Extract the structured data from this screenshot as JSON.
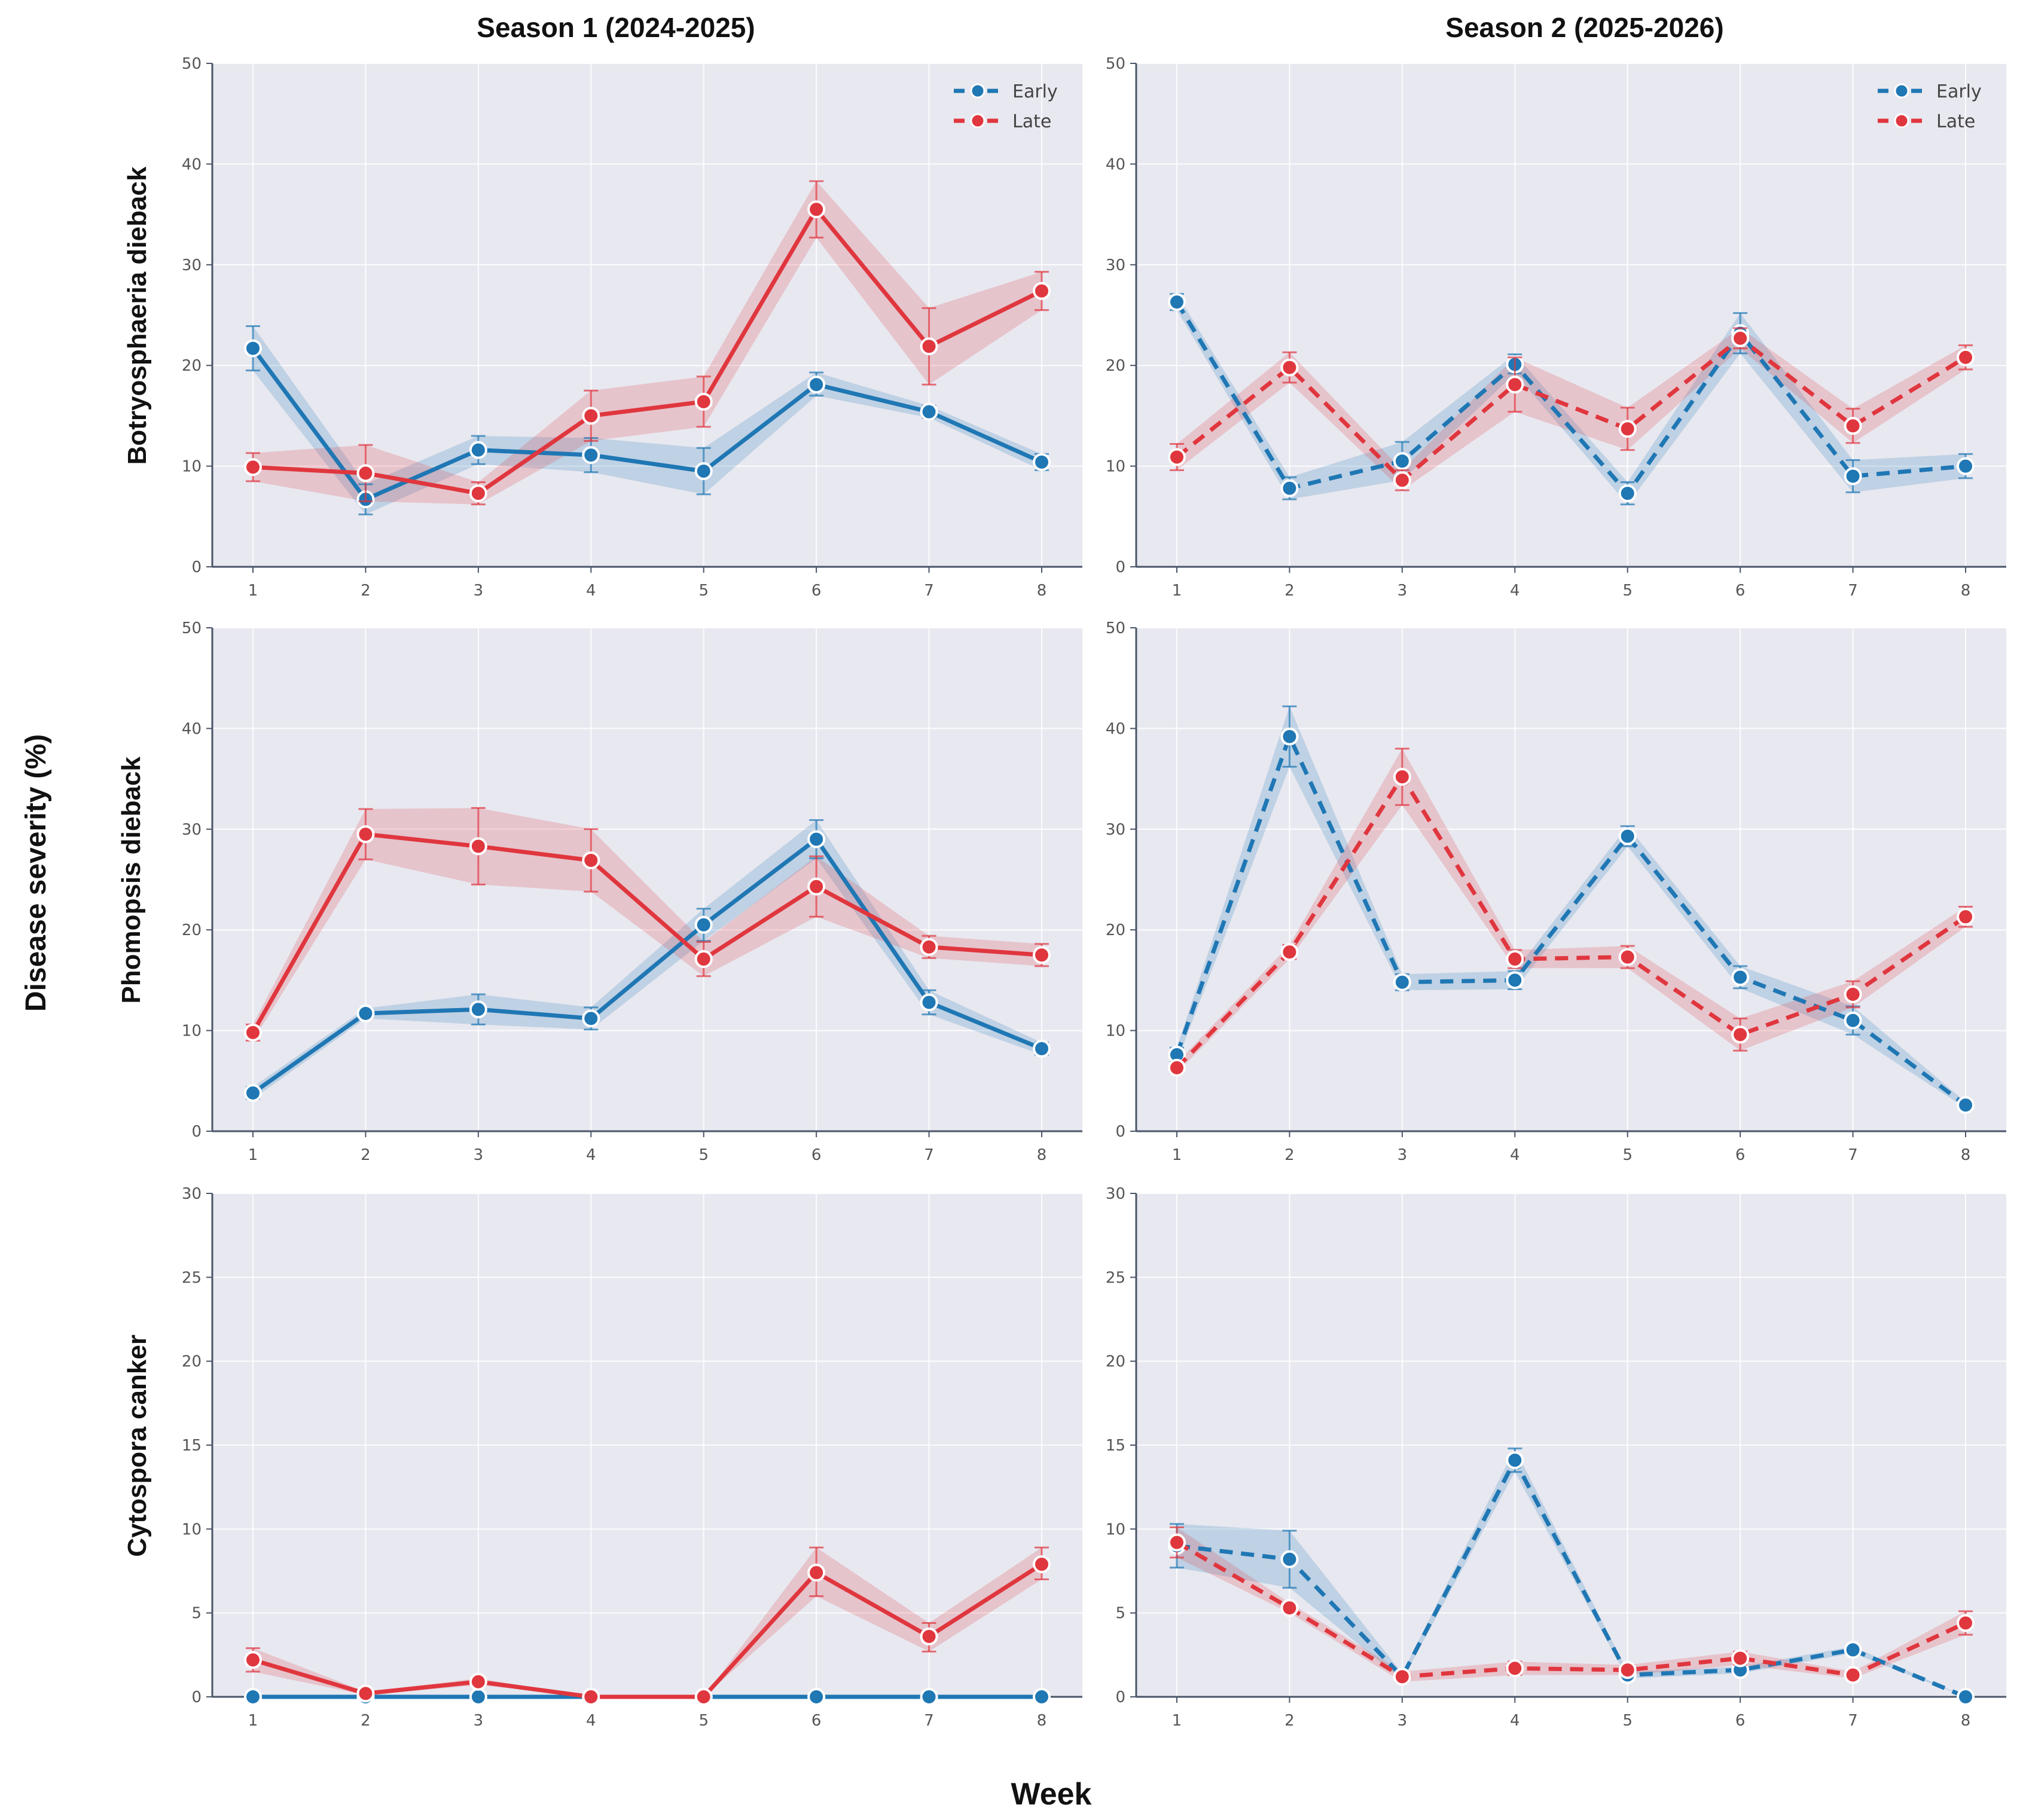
{
  "figure": {
    "ylabel": "Disease severity (%)",
    "xlabel": "Week",
    "columns": [
      "Season 1 (2024-2025)",
      "Season 2 (2025-2026)"
    ],
    "rows": [
      "Botryosphaeria dieback",
      "Phomopsis dieback",
      "Cytospora canker"
    ],
    "colors": {
      "early": "#1f77b4",
      "late": "#e0363e",
      "panel_bg": "#e8e8f0"
    },
    "legend": {
      "placement": "top-right",
      "entries": [
        "Early",
        "Late"
      ]
    }
  },
  "chart_data": [
    {
      "type": "line",
      "row": "Botryosphaeria dieback",
      "column": "Season 1 (2024-2025)",
      "line_style": "solid",
      "x": [
        1,
        2,
        3,
        4,
        5,
        6,
        7,
        8
      ],
      "ylim": [
        0,
        50
      ],
      "yticks": [
        0,
        10,
        20,
        30,
        40,
        50
      ],
      "series": [
        {
          "name": "Early",
          "values": [
            21.7,
            6.7,
            11.6,
            11.1,
            9.5,
            18.1,
            15.4,
            10.4
          ],
          "lower": [
            19.5,
            5.2,
            10.2,
            9.4,
            7.2,
            17.0,
            14.8,
            9.6
          ],
          "upper": [
            23.9,
            8.2,
            13.0,
            12.8,
            11.8,
            19.3,
            16.0,
            11.2
          ]
        },
        {
          "name": "Late",
          "values": [
            9.9,
            9.3,
            7.3,
            15.0,
            16.4,
            35.5,
            21.9,
            27.4
          ],
          "lower": [
            8.5,
            6.5,
            6.2,
            12.5,
            13.9,
            32.7,
            18.1,
            25.5
          ],
          "upper": [
            11.3,
            12.1,
            8.4,
            17.5,
            18.9,
            38.3,
            25.7,
            29.3
          ]
        }
      ]
    },
    {
      "type": "line",
      "row": "Botryosphaeria dieback",
      "column": "Season 2 (2025-2026)",
      "line_style": "dashed",
      "x": [
        1,
        2,
        3,
        4,
        5,
        6,
        7,
        8
      ],
      "ylim": [
        0,
        50
      ],
      "yticks": [
        0,
        10,
        20,
        30,
        40,
        50
      ],
      "series": [
        {
          "name": "Early",
          "values": [
            26.3,
            7.8,
            10.5,
            20.1,
            7.3,
            23.2,
            9.0,
            10.0
          ],
          "lower": [
            25.5,
            6.7,
            8.6,
            19.2,
            6.2,
            21.2,
            7.4,
            8.8
          ],
          "upper": [
            27.1,
            8.9,
            12.4,
            21.1,
            8.4,
            25.2,
            10.6,
            11.2
          ]
        },
        {
          "name": "Late",
          "values": [
            10.9,
            19.8,
            8.6,
            18.1,
            13.7,
            22.7,
            14.0,
            20.8
          ],
          "lower": [
            9.6,
            18.3,
            7.6,
            15.4,
            11.6,
            21.7,
            12.3,
            19.6
          ],
          "upper": [
            12.2,
            21.3,
            9.6,
            20.8,
            15.8,
            23.7,
            15.7,
            22.0
          ]
        }
      ]
    },
    {
      "type": "line",
      "row": "Phomopsis dieback",
      "column": "Season 1 (2024-2025)",
      "line_style": "solid",
      "x": [
        1,
        2,
        3,
        4,
        5,
        6,
        7,
        8
      ],
      "ylim": [
        0,
        50
      ],
      "yticks": [
        0,
        10,
        20,
        30,
        40,
        50
      ],
      "series": [
        {
          "name": "Early",
          "values": [
            3.8,
            11.7,
            12.1,
            11.2,
            20.5,
            29.0,
            12.8,
            8.2
          ],
          "lower": [
            3.2,
            11.2,
            10.6,
            10.1,
            18.9,
            27.1,
            11.6,
            7.6
          ],
          "upper": [
            4.4,
            12.2,
            13.6,
            12.3,
            22.1,
            30.9,
            14.0,
            8.8
          ]
        },
        {
          "name": "Late",
          "values": [
            9.8,
            29.5,
            28.3,
            26.9,
            17.1,
            24.3,
            18.3,
            17.5
          ],
          "lower": [
            9.0,
            27.0,
            24.5,
            23.8,
            15.4,
            21.3,
            17.2,
            16.4
          ],
          "upper": [
            10.6,
            32.0,
            32.1,
            30.0,
            18.8,
            27.3,
            19.4,
            18.6
          ]
        }
      ]
    },
    {
      "type": "line",
      "row": "Phomopsis dieback",
      "column": "Season 2 (2025-2026)",
      "line_style": "dashed",
      "x": [
        1,
        2,
        3,
        4,
        5,
        6,
        7,
        8
      ],
      "ylim": [
        0,
        50
      ],
      "yticks": [
        0,
        10,
        20,
        30,
        40,
        50
      ],
      "series": [
        {
          "name": "Early",
          "values": [
            7.6,
            39.2,
            14.8,
            15.0,
            29.3,
            15.3,
            11.0,
            2.6
          ],
          "lower": [
            6.9,
            36.2,
            14.0,
            14.1,
            28.3,
            14.2,
            9.6,
            2.3
          ],
          "upper": [
            8.3,
            42.2,
            15.6,
            15.9,
            30.3,
            16.4,
            12.4,
            2.9
          ]
        },
        {
          "name": "Late",
          "values": [
            6.3,
            17.8,
            35.2,
            17.1,
            17.3,
            9.6,
            13.6,
            21.3
          ],
          "lower": [
            5.8,
            17.1,
            32.4,
            16.2,
            16.2,
            8.0,
            12.3,
            20.3
          ],
          "upper": [
            6.8,
            18.5,
            38.0,
            18.0,
            18.4,
            11.2,
            14.9,
            22.3
          ]
        }
      ]
    },
    {
      "type": "line",
      "row": "Cytospora canker",
      "column": "Season 1 (2024-2025)",
      "line_style": "solid",
      "x": [
        1,
        2,
        3,
        4,
        5,
        6,
        7,
        8
      ],
      "ylim": [
        0,
        30
      ],
      "yticks": [
        0,
        5,
        10,
        15,
        20,
        25,
        30
      ],
      "series": [
        {
          "name": "Early",
          "values": [
            0,
            0,
            0,
            0,
            0,
            0,
            0,
            0
          ],
          "lower": [
            0,
            0,
            0,
            0,
            0,
            0,
            0,
            0
          ],
          "upper": [
            0,
            0,
            0,
            0,
            0,
            0,
            0,
            0
          ]
        },
        {
          "name": "Late",
          "values": [
            2.2,
            0.2,
            0.9,
            0,
            0,
            7.4,
            3.6,
            7.9
          ],
          "lower": [
            1.5,
            0.1,
            0.7,
            0,
            0,
            6.0,
            2.7,
            7.0
          ],
          "upper": [
            2.9,
            0.3,
            1.1,
            0,
            0,
            8.9,
            4.4,
            8.9
          ]
        }
      ]
    },
    {
      "type": "line",
      "row": "Cytospora canker",
      "column": "Season 2 (2025-2026)",
      "line_style": "dashed",
      "x": [
        1,
        2,
        3,
        4,
        5,
        6,
        7,
        8
      ],
      "ylim": [
        0,
        30
      ],
      "yticks": [
        0,
        5,
        10,
        15,
        20,
        25,
        30
      ],
      "series": [
        {
          "name": "Early",
          "values": [
            9.0,
            8.2,
            1.2,
            14.1,
            1.3,
            1.6,
            2.8,
            0
          ],
          "lower": [
            7.7,
            6.5,
            1.0,
            13.4,
            1.1,
            1.4,
            2.6,
            0
          ],
          "upper": [
            10.3,
            9.9,
            1.4,
            14.8,
            1.5,
            1.8,
            3.0,
            0
          ]
        },
        {
          "name": "Late",
          "values": [
            9.2,
            5.3,
            1.2,
            1.7,
            1.6,
            2.3,
            1.3,
            4.4
          ],
          "lower": [
            8.3,
            5.0,
            0.9,
            1.3,
            1.3,
            1.9,
            1.1,
            3.7
          ],
          "upper": [
            10.1,
            5.6,
            1.5,
            2.1,
            1.9,
            2.7,
            1.5,
            5.1
          ]
        }
      ]
    }
  ]
}
